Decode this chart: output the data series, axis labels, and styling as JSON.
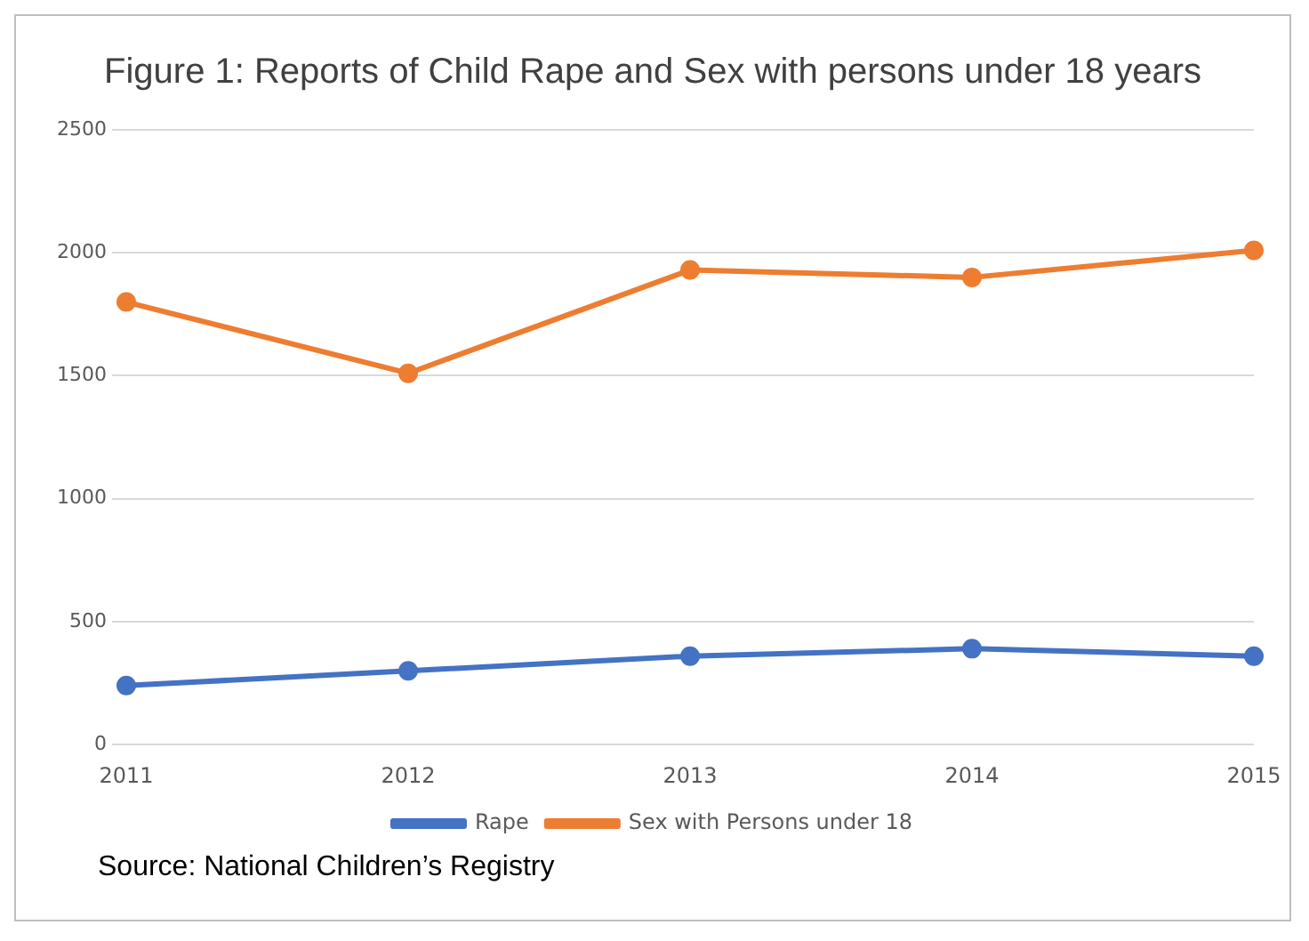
{
  "chart_data": {
    "type": "line",
    "title": "Figure 1: Reports of Child Rape and Sex with persons under 18 years",
    "categories": [
      "2011",
      "2012",
      "2013",
      "2014",
      "2015"
    ],
    "series": [
      {
        "name": "Rape",
        "color": "#4472c4",
        "values": [
          240,
          300,
          360,
          390,
          360
        ]
      },
      {
        "name": "Sex with Persons under 18",
        "color": "#ed7d31",
        "values": [
          1800,
          1510,
          1930,
          1900,
          2010
        ]
      }
    ],
    "ylim": [
      0,
      2500
    ],
    "yticks": [
      0,
      500,
      1000,
      1500,
      2000,
      2500
    ],
    "grid": "y",
    "legend": "bottom",
    "marker": "circle",
    "line_style": "solid",
    "annotations": [
      "Source: National Children’s Registry"
    ]
  }
}
